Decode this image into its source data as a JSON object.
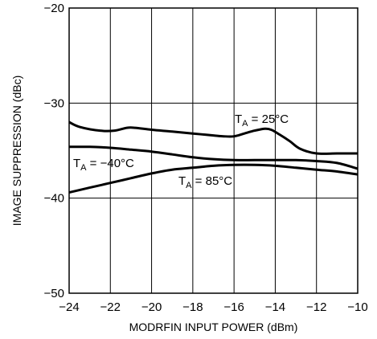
{
  "chart_data": {
    "type": "line",
    "title": "",
    "xlabel": "MODRFIN INPUT POWER (dBm)",
    "ylabel": "IMAGE SUPPRESSION (dBc)",
    "xlim": [
      -24,
      -10
    ],
    "ylim": [
      -50,
      -20
    ],
    "xticks": [
      "−24",
      "−22",
      "−20",
      "−18",
      "−16",
      "−14",
      "−12",
      "−10"
    ],
    "yticks": [
      "−20",
      "−30",
      "−40",
      "−50"
    ],
    "grid": true,
    "legend": "inline labels",
    "series": [
      {
        "name": "T_A = 25°C",
        "label_main": "T",
        "label_sub": "A",
        "label_rest": " = 25°C",
        "x": [
          -24,
          -23.5,
          -22.5,
          -21.8,
          -21.2,
          -20.8,
          -20,
          -19,
          -18,
          -17,
          -16.5,
          -16,
          -15.5,
          -15,
          -14.5,
          -14.2,
          -13.8,
          -13.3,
          -12.8,
          -12,
          -11,
          -10
        ],
        "y": [
          -32.0,
          -32.5,
          -32.9,
          -32.9,
          -32.6,
          -32.6,
          -32.8,
          -33.0,
          -33.2,
          -33.4,
          -33.5,
          -33.5,
          -33.2,
          -32.9,
          -32.7,
          -32.8,
          -33.3,
          -34.0,
          -34.8,
          -35.3,
          -35.3,
          -35.3
        ]
      },
      {
        "name": "T_A = −40°C",
        "label_main": "T",
        "label_sub": "A",
        "label_rest": " = −40°C",
        "x": [
          -24,
          -23,
          -22,
          -21,
          -20,
          -19,
          -18,
          -17,
          -16,
          -15,
          -14,
          -13,
          -12,
          -11,
          -10
        ],
        "y": [
          -34.6,
          -34.6,
          -34.7,
          -34.9,
          -35.1,
          -35.4,
          -35.7,
          -35.9,
          -36.0,
          -36.0,
          -36.0,
          -36.0,
          -36.1,
          -36.3,
          -36.9
        ]
      },
      {
        "name": "T_A = 85°C",
        "label_main": "T",
        "label_sub": "A",
        "label_rest": " = 85°C",
        "x": [
          -24,
          -23,
          -22,
          -21,
          -20,
          -19,
          -18,
          -17,
          -16,
          -15,
          -14,
          -13,
          -12,
          -11,
          -10
        ],
        "y": [
          -39.4,
          -38.9,
          -38.4,
          -37.9,
          -37.4,
          -37.0,
          -36.8,
          -36.6,
          -36.5,
          -36.5,
          -36.6,
          -36.8,
          -37.0,
          -37.2,
          -37.5
        ]
      }
    ]
  }
}
